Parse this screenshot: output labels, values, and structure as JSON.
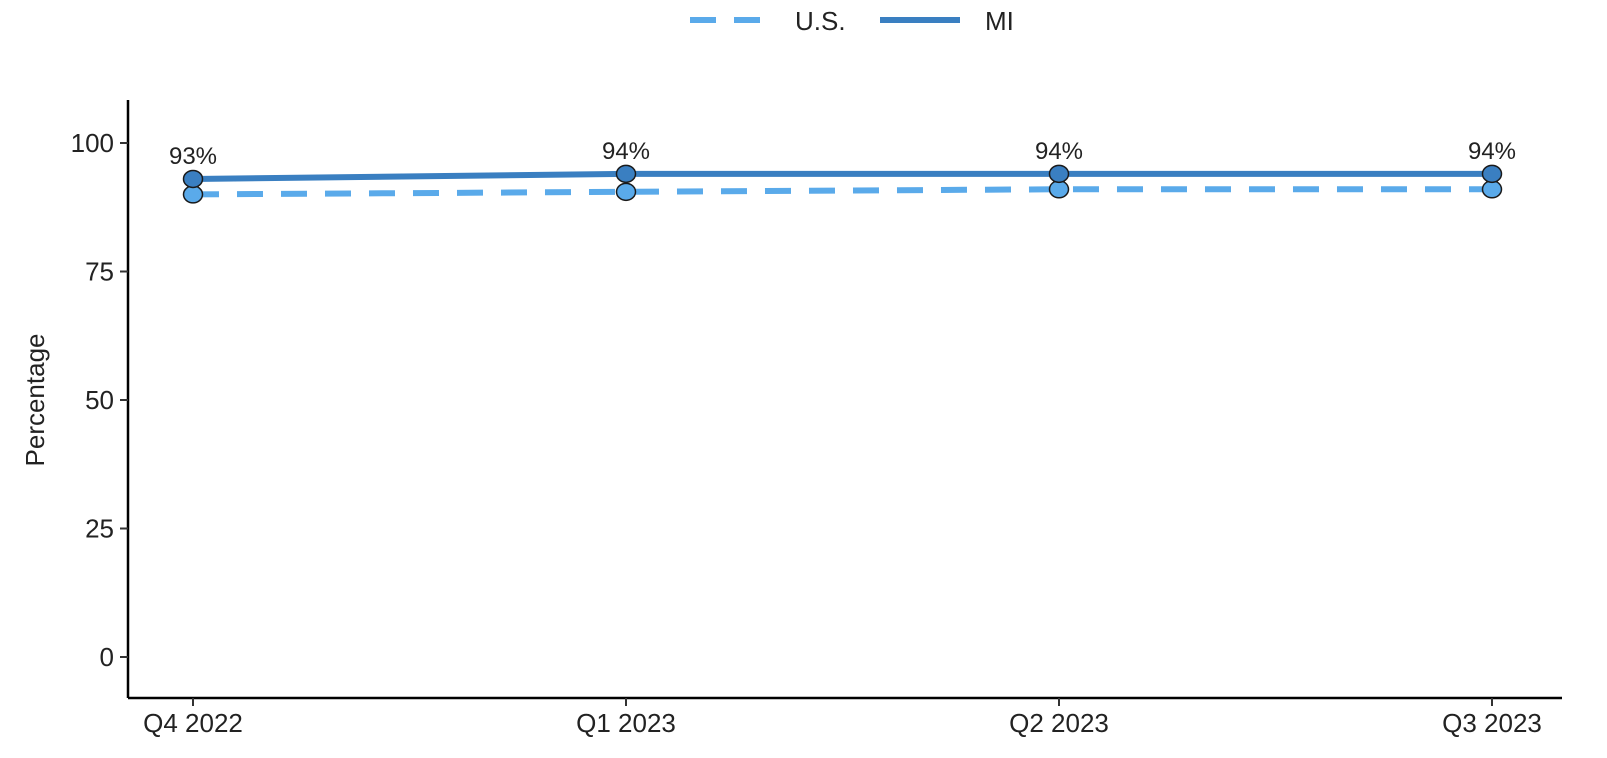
{
  "chart_data": {
    "type": "line",
    "categories": [
      "Q4 2022",
      "Q1 2023",
      "Q2 2023",
      "Q3 2023"
    ],
    "series": [
      {
        "name": "U.S.",
        "values": [
          90,
          90.5,
          91,
          91
        ],
        "color": "#5aaaea",
        "line_style": "dashed"
      },
      {
        "name": "MI",
        "values": [
          93,
          94,
          94,
          94
        ],
        "labels": [
          "93%",
          "94%",
          "94%",
          "94%"
        ],
        "color": "#3a7fc1",
        "line_style": "solid"
      }
    ],
    "xlabel": "",
    "ylabel": "Percentage",
    "ylim": [
      0,
      100
    ],
    "yticks": [
      "0",
      "25",
      "50",
      "75",
      "100"
    ],
    "grid": false,
    "legend_position": "top-center"
  }
}
